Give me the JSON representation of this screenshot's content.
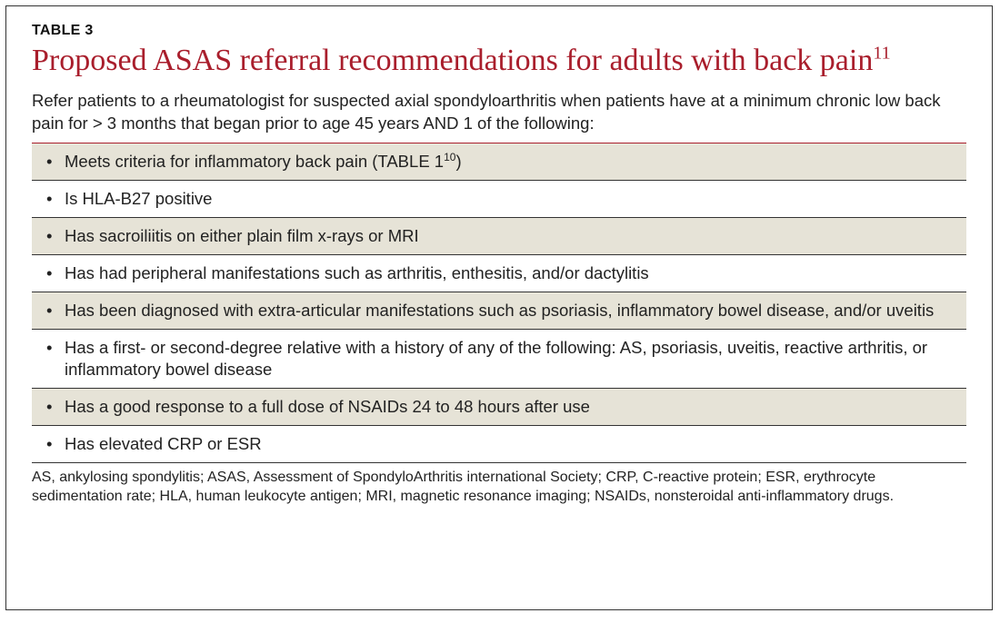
{
  "table": {
    "label": "TABLE 3",
    "title_html": "Proposed ASAS referral recommendations for adults with back pain<sup>11</sup>",
    "intro": "Refer patients to a rheumatologist for suspected axial spondyloarthritis when patients have at a minimum chronic low back pain for > 3 months that began prior to age 45 years AND 1 of the following:",
    "rows": [
      {
        "html": "Meets criteria for inflammatory back pain (TABLE 1<sup>10</sup>)",
        "alt": true
      },
      {
        "html": "Is HLA-B27 positive",
        "alt": false
      },
      {
        "html": "Has sacroiliitis on either plain film x-rays or MRI",
        "alt": true
      },
      {
        "html": "Has had peripheral manifestations such as arthritis, enthesitis, and/or dactylitis",
        "alt": false
      },
      {
        "html": "Has been diagnosed with extra-articular manifestations such as psoriasis, inflammatory bowel disease, and/or uveitis",
        "alt": true
      },
      {
        "html": "Has a first- or second-degree relative with a history of any of the following: AS, psoriasis, uveitis, reactive arthritis, or inflammatory bowel disease",
        "alt": false
      },
      {
        "html": "Has a good response to a full dose of NSAIDs 24 to 48 hours after use",
        "alt": true
      },
      {
        "html": "Has elevated CRP or ESR",
        "alt": false
      }
    ],
    "footnote": "AS, ankylosing spondylitis; ASAS, Assessment of SpondyloArthritis international Society; CRP, C-reactive protein; ESR, erythrocyte sedimentation rate; HLA, human leukocyte antigen; MRI, magnetic resonance imaging; NSAIDs, nonsteroidal anti-inflammatory drugs.",
    "colors": {
      "accent": "#a91e2c",
      "alt_row_bg": "#e6e3d7",
      "border": "#333333",
      "text": "#222222",
      "background": "#ffffff"
    },
    "typography": {
      "label_fontsize": 16,
      "title_fontsize": 34,
      "body_fontsize": 18.5,
      "footnote_fontsize": 16,
      "title_font": "Georgia",
      "body_font": "Helvetica Neue"
    }
  }
}
